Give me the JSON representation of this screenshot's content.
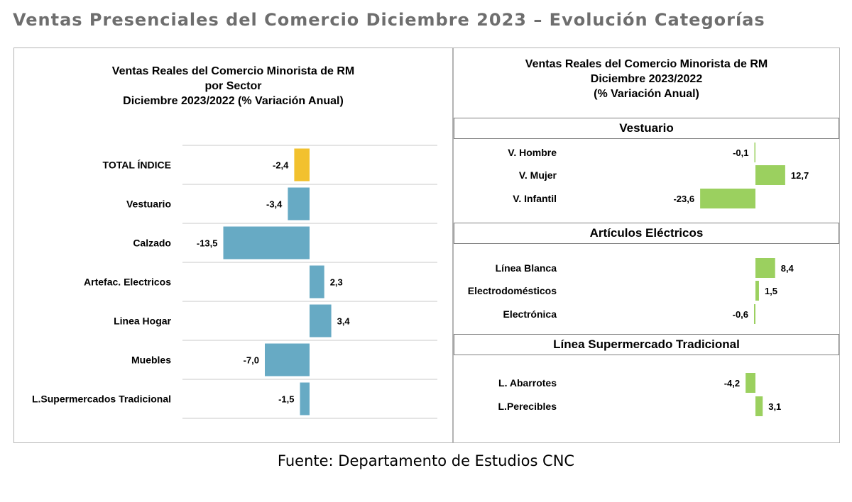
{
  "page_title": "Ventas Presenciales del Comercio Diciembre 2023 – Evolución Categorías",
  "source": "Fuente: Departamento de Estudios CNC",
  "colors": {
    "total": "#f2c12e",
    "sector": "#67aac4",
    "subcategory": "#9bd05f",
    "gridline": "#c8c8c8"
  },
  "chart_data": [
    {
      "type": "bar",
      "orientation": "horizontal",
      "title": [
        "Ventas Reales del Comercio Minorista de RM",
        "por Sector",
        "Diciembre 2023/2022 (% Variación Anual)"
      ],
      "categories": [
        "TOTAL ÍNDICE",
        "Vestuario",
        "Calzado",
        "Artefac. Electricos",
        "Linea Hogar",
        "Muebles",
        "L.Supermercados Tradicional"
      ],
      "values": [
        -2.4,
        -3.4,
        -13.5,
        2.3,
        3.4,
        -7.0,
        -1.5
      ],
      "value_labels": [
        "-2,4",
        "-3,4",
        "-13,5",
        "2,3",
        "3,4",
        "-7,0",
        "-1,5"
      ],
      "highlight": "TOTAL ÍNDICE",
      "grid": true
    },
    {
      "type": "bar",
      "orientation": "horizontal",
      "title": [
        "Ventas Reales del Comercio Minorista de RM",
        "Diciembre 2023/2022",
        "(% Variación Anual)"
      ],
      "groups": [
        {
          "name": "Vestuario",
          "categories": [
            "V. Hombre",
            "V. Mujer",
            "V. Infantil"
          ],
          "values": [
            -0.1,
            12.7,
            -23.6
          ],
          "value_labels": [
            "-0,1",
            "12,7",
            "-23,6"
          ]
        },
        {
          "name": "Artículos Eléctricos",
          "categories": [
            "Línea Blanca",
            "Electrodomésticos",
            "Electrónica"
          ],
          "values": [
            8.4,
            1.5,
            -0.6
          ],
          "value_labels": [
            "8,4",
            "1,5",
            "-0,6"
          ]
        },
        {
          "name": "Línea Supermercado Tradicional",
          "categories": [
            "L. Abarrotes",
            "L.Perecibles"
          ],
          "values": [
            -4.2,
            3.1
          ],
          "value_labels": [
            "-4,2",
            "3,1"
          ]
        }
      ],
      "grid": false
    }
  ]
}
